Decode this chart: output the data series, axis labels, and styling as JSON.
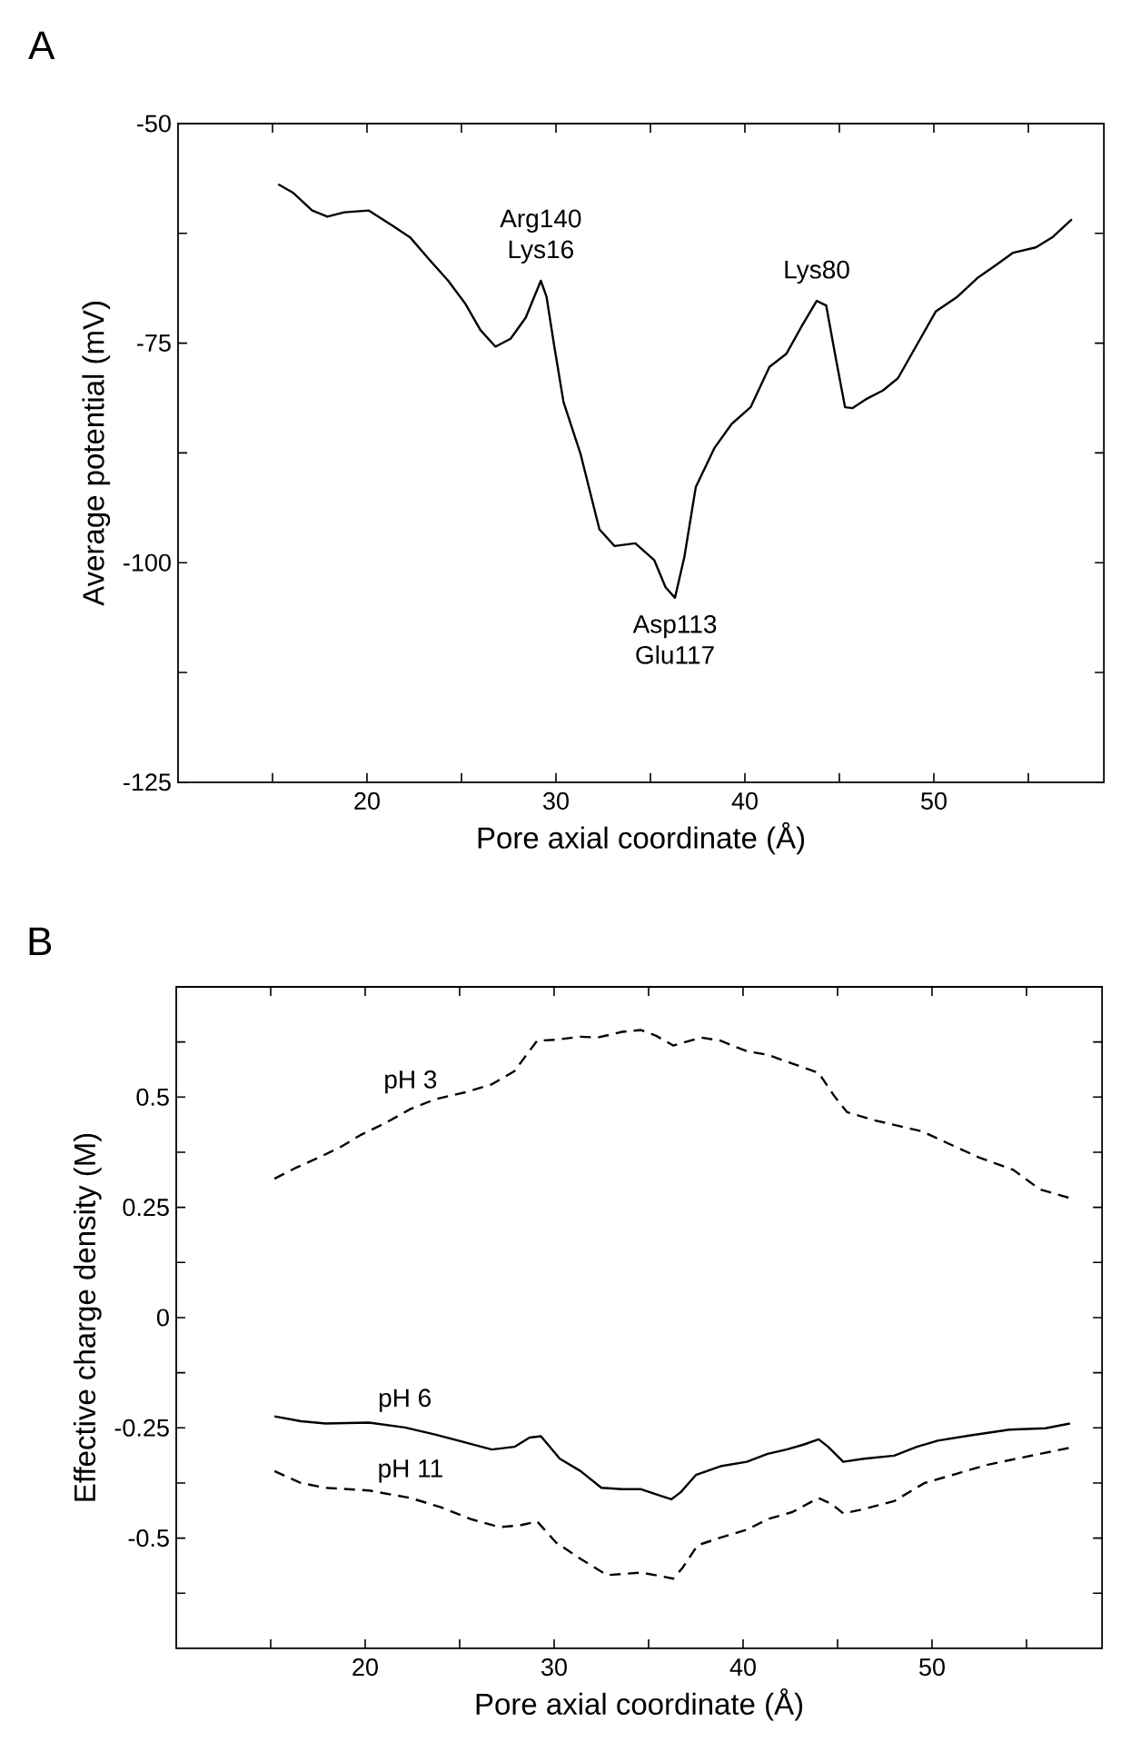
{
  "chart_data": [
    {
      "type": "line",
      "title": "A",
      "xlabel": "Pore axial coordinate (Å)",
      "ylabel": "Average potential (mV)",
      "xlim": [
        10,
        59
      ],
      "ylim": [
        -125,
        -50
      ],
      "xticks": [
        {
          "value": 15,
          "label": null
        },
        20,
        {
          "value": 25,
          "label": null
        },
        30,
        {
          "value": 35,
          "label": null
        },
        40,
        {
          "value": 45,
          "label": null
        },
        50,
        {
          "value": 55,
          "label": null
        }
      ],
      "yticks": [
        -125,
        {
          "value": -112.5,
          "label": null
        },
        -100,
        {
          "value": -87.5,
          "label": null
        },
        -75,
        {
          "value": -62.5,
          "label": null
        },
        -50
      ],
      "annotations": [
        {
          "text": "Arg140 Lys16",
          "x": 29.2,
          "y": -67.9
        },
        {
          "text": "Asp113 Glu117",
          "x": 36.3,
          "y": -104.0
        },
        {
          "text": "Lys80",
          "x": 43.8,
          "y": -70.2
        }
      ],
      "series": [
        {
          "color": "#000000",
          "line_style": "solid",
          "x": [
            15.3,
            16.1,
            17.1,
            17.9,
            18.8,
            20.1,
            21.4,
            22.3,
            23.3,
            24.3,
            25.2,
            26.0,
            26.8,
            27.6,
            28.4,
            29.2,
            29.5,
            29.9,
            30.4,
            31.3,
            32.3,
            33.1,
            34.2,
            35.2,
            35.8,
            36.3,
            36.8,
            37.4,
            38.4,
            39.3,
            40.3,
            41.3,
            42.2,
            43.0,
            43.8,
            44.3,
            44.8,
            45.3,
            45.7,
            46.4,
            47.3,
            48.1,
            49.1,
            50.1,
            51.2,
            52.3,
            53.3,
            54.2,
            55.4,
            56.3,
            57.3
          ],
          "values": [
            -56.9,
            -57.9,
            -59.9,
            -60.6,
            -60.1,
            -59.9,
            -61.7,
            -63.0,
            -65.5,
            -67.9,
            -70.5,
            -73.5,
            -75.4,
            -74.5,
            -72.1,
            -67.9,
            -69.7,
            -75.2,
            -81.7,
            -87.6,
            -96.2,
            -98.1,
            -97.8,
            -99.7,
            -102.8,
            -104.0,
            -99.3,
            -91.4,
            -86.9,
            -84.2,
            -82.3,
            -77.7,
            -76.2,
            -73.1,
            -70.2,
            -70.7,
            -76.6,
            -82.3,
            -82.4,
            -81.4,
            -80.4,
            -79.0,
            -75.2,
            -71.4,
            -69.8,
            -67.6,
            -66.1,
            -64.7,
            -64.1,
            -62.9,
            -60.9
          ]
        }
      ]
    },
    {
      "type": "line",
      "title": "B",
      "xlabel": "Pore axial coordinate (Å)",
      "ylabel": "Effective charge density (M)",
      "xlim": [
        10,
        59
      ],
      "ylim": [
        -0.75,
        0.75
      ],
      "xticks": [
        {
          "value": 15,
          "label": null
        },
        20,
        {
          "value": 25,
          "label": null
        },
        30,
        {
          "value": 35,
          "label": null
        },
        40,
        {
          "value": 45,
          "label": null
        },
        50,
        {
          "value": 55,
          "label": null
        }
      ],
      "yticks": [
        {
          "value": -0.625,
          "label": null
        },
        -0.5,
        {
          "value": -0.375,
          "label": null
        },
        -0.25,
        {
          "value": -0.125,
          "label": null
        },
        0,
        {
          "value": 0.125,
          "label": null
        },
        0.25,
        {
          "value": 0.375,
          "label": null
        },
        0.5,
        {
          "value": 0.625,
          "label": null
        }
      ],
      "series": [
        {
          "name": "pH 3",
          "color": "#000000",
          "line_style": "dashed",
          "x": [
            15.2,
            16.3,
            17.6,
            18.7,
            19.8,
            21.1,
            22.4,
            23.7,
            25.3,
            26.7,
            27.9,
            29.1,
            30.1,
            31.4,
            32.3,
            33.6,
            34.6,
            35.4,
            36.3,
            37.8,
            38.8,
            40.2,
            41.3,
            42.6,
            44.0,
            44.8,
            45.5,
            46.8,
            48.2,
            49.5,
            50.9,
            52.5,
            54.3,
            55.7,
            57.3
          ],
          "values": [
            0.315,
            0.339,
            0.364,
            0.387,
            0.415,
            0.442,
            0.473,
            0.495,
            0.511,
            0.529,
            0.559,
            0.628,
            0.63,
            0.637,
            0.635,
            0.648,
            0.652,
            0.639,
            0.617,
            0.635,
            0.628,
            0.604,
            0.596,
            0.576,
            0.555,
            0.504,
            0.466,
            0.449,
            0.435,
            0.422,
            0.394,
            0.363,
            0.335,
            0.291,
            0.271
          ]
        },
        {
          "name": "pH 6",
          "color": "#000000",
          "line_style": "solid",
          "x": [
            15.2,
            16.6,
            17.9,
            20.2,
            22.1,
            23.7,
            25.3,
            26.7,
            27.9,
            28.7,
            29.3,
            30.3,
            31.4,
            32.5,
            33.6,
            34.6,
            35.5,
            36.2,
            36.7,
            37.5,
            38.8,
            40.2,
            41.3,
            42.3,
            43.2,
            44.0,
            44.5,
            45.3,
            46.4,
            48.0,
            49.2,
            50.3,
            51.9,
            54.1,
            56.0,
            57.3
          ],
          "values": [
            -0.224,
            -0.235,
            -0.24,
            -0.238,
            -0.249,
            -0.265,
            -0.283,
            -0.299,
            -0.293,
            -0.272,
            -0.269,
            -0.32,
            -0.348,
            -0.386,
            -0.389,
            -0.389,
            -0.402,
            -0.412,
            -0.396,
            -0.357,
            -0.337,
            -0.327,
            -0.309,
            -0.299,
            -0.288,
            -0.276,
            -0.293,
            -0.327,
            -0.32,
            -0.313,
            -0.293,
            -0.279,
            -0.268,
            -0.254,
            -0.251,
            -0.24
          ]
        },
        {
          "name": "pH 11",
          "color": "#000000",
          "line_style": "dashed",
          "x": [
            15.2,
            16.6,
            17.9,
            20.2,
            22.4,
            24.0,
            25.6,
            27.1,
            28.2,
            29.1,
            30.1,
            31.4,
            32.8,
            34.6,
            35.5,
            36.3,
            36.8,
            37.6,
            38.8,
            40.2,
            41.3,
            42.6,
            44.0,
            44.7,
            45.3,
            46.4,
            48.0,
            49.6,
            51.3,
            52.9,
            54.8,
            57.3
          ],
          "values": [
            -0.348,
            -0.375,
            -0.386,
            -0.392,
            -0.409,
            -0.43,
            -0.457,
            -0.475,
            -0.471,
            -0.462,
            -0.51,
            -0.547,
            -0.584,
            -0.578,
            -0.585,
            -0.592,
            -0.567,
            -0.516,
            -0.499,
            -0.481,
            -0.457,
            -0.441,
            -0.409,
            -0.423,
            -0.444,
            -0.434,
            -0.416,
            -0.375,
            -0.354,
            -0.334,
            -0.317,
            -0.295
          ]
        }
      ]
    }
  ]
}
